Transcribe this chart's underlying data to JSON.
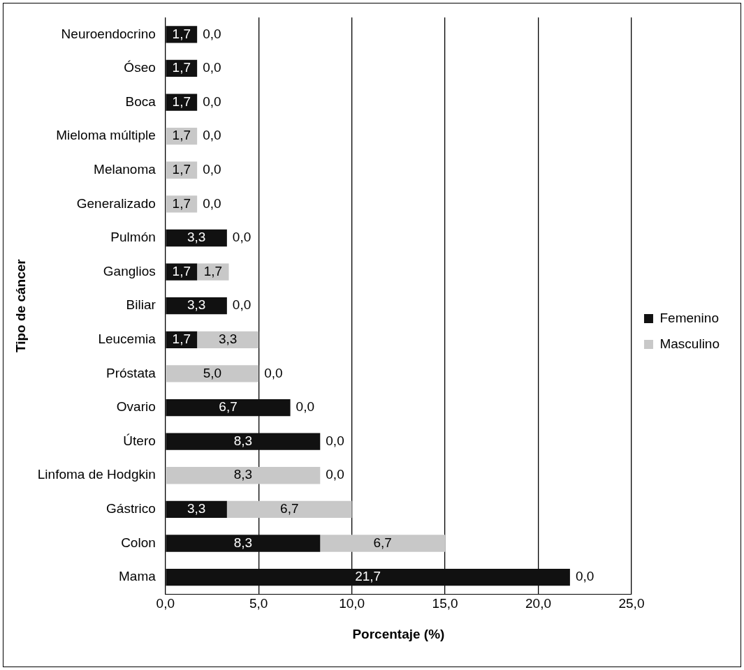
{
  "chart_data": {
    "type": "bar",
    "orientation": "horizontal",
    "stacked": true,
    "categories": [
      "Neuroendocrino",
      "Óseo",
      "Boca",
      "Mieloma múltiple",
      "Melanoma",
      "Generalizado",
      "Pulmón",
      "Ganglios",
      "Biliar",
      "Leucemia",
      "Próstata",
      "Ovario",
      "Útero",
      "Linfoma de Hodgkin",
      "Gástrico",
      "Colon",
      "Mama"
    ],
    "series": [
      {
        "name": "Femenino",
        "color": "#111111",
        "values": [
          1.7,
          1.7,
          1.7,
          0,
          0,
          0,
          3.3,
          1.7,
          3.3,
          1.7,
          0,
          6.7,
          8.3,
          0,
          3.3,
          8.3,
          21.7
        ],
        "value_labels": [
          "1,7",
          "1,7",
          "1,7",
          "0,0",
          "0,0",
          "0,0",
          "3,3",
          "1,7",
          "3,3",
          "1,7",
          "0,0",
          "6,7",
          "8,3",
          "0,0",
          "3,3",
          "8,3",
          "21,7"
        ]
      },
      {
        "name": "Masculino",
        "color": "#c8c8c8",
        "values": [
          0,
          0,
          0,
          1.7,
          1.7,
          1.7,
          0,
          1.7,
          0,
          3.3,
          5.0,
          0,
          0,
          8.3,
          6.7,
          6.7,
          0
        ],
        "value_labels": [
          "0,0",
          "0,0",
          "0,0",
          "1,7",
          "1,7",
          "1,7",
          "0,0",
          "1,7",
          "0,0",
          "3,3",
          "5,0",
          "0,0",
          "0,0",
          "8,3",
          "6,7",
          "6,7",
          "0,0"
        ]
      }
    ],
    "xlim": [
      0,
      25
    ],
    "xticks": [
      {
        "value": 0,
        "label": "0,0"
      },
      {
        "value": 5,
        "label": "5,0"
      },
      {
        "value": 10,
        "label": "10,0"
      },
      {
        "value": 15,
        "label": "15,0"
      },
      {
        "value": 20,
        "label": "20,0"
      },
      {
        "value": 25,
        "label": "25,0"
      }
    ],
    "xlabel": "Porcentaje (%)",
    "ylabel": "Tipo de cáncer",
    "grid": "x",
    "legend": "right"
  }
}
